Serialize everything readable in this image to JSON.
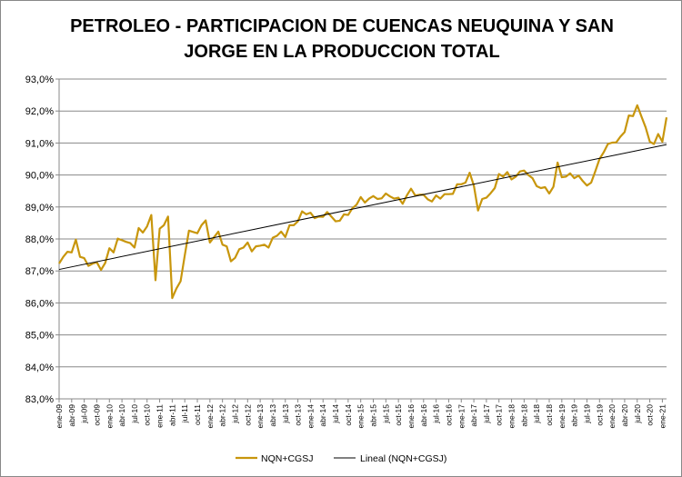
{
  "chart_data": {
    "type": "line",
    "title": "PETROLEO - PARTICIPACION DE CUENCAS NEUQUINA Y SAN JORGE EN LA PRODUCCION TOTAL",
    "title_lines": [
      "PETROLEO - PARTICIPACION DE CUENCAS NEUQUINA Y SAN",
      "JORGE EN LA PRODUCCION TOTAL"
    ],
    "xlabel": "",
    "ylabel": "",
    "ylim": [
      83,
      93
    ],
    "y_ticks": [
      "83,0%",
      "84,0%",
      "85,0%",
      "86,0%",
      "87,0%",
      "88,0%",
      "89,0%",
      "90,0%",
      "91,0%",
      "92,0%",
      "93,0%"
    ],
    "x_start": "ene-09",
    "x_end": "ene-21",
    "x_frequency": "monthly",
    "x_ticks": [
      "ene-09",
      "abr-09",
      "jul-09",
      "oct-09",
      "ene-10",
      "abr-10",
      "jul-10",
      "oct-10",
      "ene-11",
      "abr-11",
      "jul-11",
      "oct-11",
      "ene-12",
      "abr-12",
      "jul-12",
      "oct-12",
      "ene-13",
      "abr-13",
      "jul-13",
      "oct-13",
      "ene-14",
      "abr-14",
      "jul-14",
      "oct-14",
      "ene-15",
      "abr-15",
      "jul-15",
      "oct-15",
      "ene-16",
      "abr-16",
      "jul-16",
      "oct-16",
      "ene-17",
      "abr-17",
      "jul-17",
      "oct-17",
      "ene-18",
      "abr-18",
      "jul-18",
      "oct-18",
      "ene-19",
      "abr-19",
      "jul-19",
      "oct-19",
      "ene-20",
      "abr-20",
      "jul-20",
      "oct-20",
      "ene-21"
    ],
    "grid": true,
    "legend_position": "bottom",
    "series": [
      {
        "name": "NQN+CGSJ",
        "color": "#C8960C",
        "values": [
          87.23,
          87.44,
          87.6,
          87.58,
          87.98,
          87.44,
          87.4,
          87.16,
          87.23,
          87.27,
          87.03,
          87.25,
          87.71,
          87.58,
          88.01,
          87.96,
          87.91,
          87.87,
          87.73,
          88.34,
          88.2,
          88.39,
          88.75,
          86.71,
          88.32,
          88.43,
          88.7,
          86.15,
          86.45,
          86.68,
          87.49,
          88.26,
          88.22,
          88.18,
          88.43,
          88.58,
          87.89,
          88.06,
          88.23,
          87.82,
          87.77,
          87.3,
          87.41,
          87.68,
          87.73,
          87.89,
          87.61,
          87.77,
          87.79,
          87.82,
          87.73,
          88.04,
          88.1,
          88.23,
          88.06,
          88.43,
          88.43,
          88.55,
          88.86,
          88.77,
          88.82,
          88.65,
          88.7,
          88.69,
          88.84,
          88.7,
          88.55,
          88.57,
          88.77,
          88.75,
          88.96,
          89.07,
          89.31,
          89.14,
          89.26,
          89.34,
          89.25,
          89.27,
          89.42,
          89.33,
          89.26,
          89.29,
          89.1,
          89.36,
          89.57,
          89.36,
          89.38,
          89.38,
          89.24,
          89.17,
          89.36,
          89.26,
          89.4,
          89.4,
          89.41,
          89.71,
          89.71,
          89.76,
          90.07,
          89.67,
          88.89,
          89.25,
          89.29,
          89.43,
          89.59,
          90.03,
          89.95,
          90.09,
          89.86,
          89.95,
          90.11,
          90.14,
          90.0,
          89.9,
          89.65,
          89.59,
          89.62,
          89.42,
          89.63,
          90.39,
          89.93,
          89.95,
          90.05,
          89.9,
          89.98,
          89.81,
          89.67,
          89.76,
          90.12,
          90.5,
          90.71,
          90.97,
          91.01,
          91.02,
          91.2,
          91.34,
          91.86,
          91.84,
          92.18,
          91.83,
          91.49,
          91.04,
          90.97,
          91.28,
          91.04,
          91.8
        ]
      },
      {
        "name": "Lineal (NQN+CGSJ)",
        "color": "#000000",
        "type": "linear-trend"
      }
    ]
  }
}
